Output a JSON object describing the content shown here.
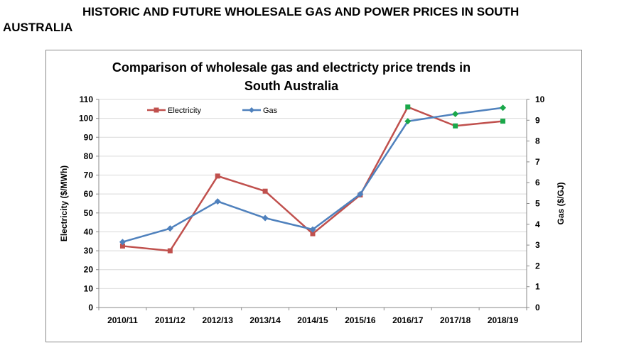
{
  "page": {
    "heading_line1": "HISTORIC AND FUTURE WHOLESALE GAS AND POWER PRICES IN SOUTH",
    "heading_line2": "AUSTRALIA"
  },
  "colors": {
    "electricity": "#c0504d",
    "gas": "#4f81bd",
    "forecast_electricity_marker": "#1aa84a",
    "forecast_gas_marker": "#1aa84a",
    "grid": "#d9d9d9"
  },
  "chart_data": {
    "type": "line",
    "title_line1": "Comparison of wholesale gas and electricty price trends in",
    "title_line2": "South Australia",
    "categories": [
      "2010/11",
      "2011/12",
      "2012/13",
      "2013/14",
      "2014/15",
      "2015/16",
      "2016/17",
      "2017/18",
      "2018/19"
    ],
    "ylabel": "Electricity ($/MWh)",
    "y2label": "Gas ($/GJ)",
    "ylim": [
      0,
      110
    ],
    "y_ticks": [
      0,
      10,
      20,
      30,
      40,
      50,
      60,
      70,
      80,
      90,
      100,
      110
    ],
    "y2lim": [
      0,
      10
    ],
    "y2_ticks": [
      0,
      1,
      2,
      3,
      4,
      5,
      6,
      7,
      8,
      9,
      10
    ],
    "grid": "horizontal",
    "legend_position": "top-left",
    "series": [
      {
        "name": "Electricity",
        "axis": "left",
        "marker": "square",
        "values": [
          32.5,
          30,
          69.5,
          61.5,
          39,
          59.5,
          106,
          96,
          98.5
        ]
      },
      {
        "name": "Gas",
        "axis": "right",
        "marker": "diamond",
        "values": [
          3.15,
          3.8,
          5.1,
          4.3,
          3.75,
          5.45,
          8.95,
          9.3,
          9.6
        ]
      }
    ],
    "forecast_from_index": 6
  }
}
